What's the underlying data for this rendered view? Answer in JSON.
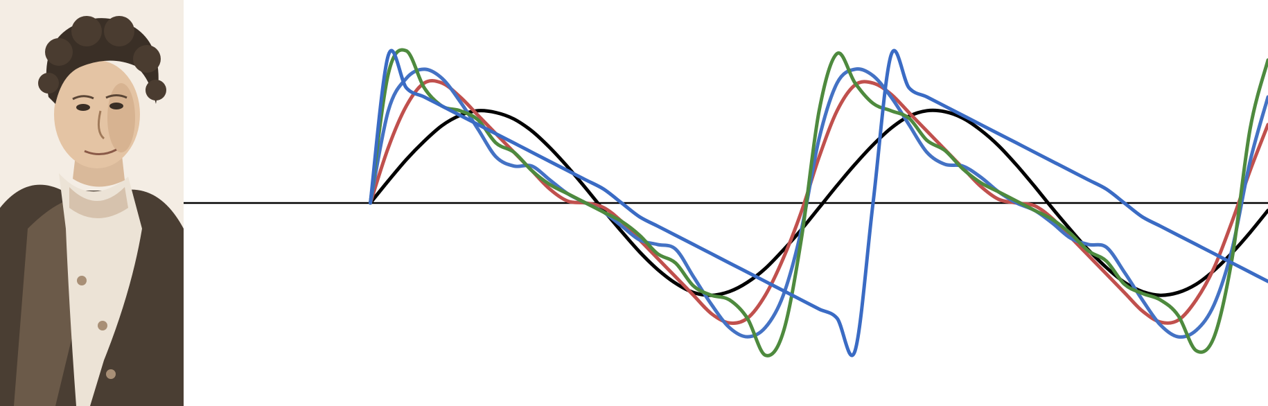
{
  "chart_data": {
    "type": "line",
    "title": "",
    "xlabel": "",
    "ylabel": "",
    "axes_visible": false,
    "grid": false,
    "legend": "none",
    "x": [
      0,
      0.25,
      0.5,
      0.75,
      1,
      1.25,
      1.5,
      1.75,
      2,
      2.25,
      2.5,
      2.75,
      3,
      3.25,
      3.5,
      3.75,
      4,
      4.25,
      4.5,
      4.75,
      5,
      5.25,
      5.5,
      5.75,
      6,
      6.25,
      6.5,
      6.75,
      7,
      7.25,
      7.5,
      7.75,
      8,
      8.25,
      8.5,
      8.75,
      9,
      9.25,
      9.5,
      9.75,
      10,
      10.25,
      10.5,
      10.75,
      11,
      11.25,
      11.5,
      11.75,
      12,
      12.25,
      12.5
    ],
    "xlim": [
      -2.6,
      12.5
    ],
    "ylim": [
      -1.9,
      1.9
    ],
    "series": [
      {
        "color": "#000000",
        "values": [
          0,
          0.24,
          0.47,
          0.67,
          0.84,
          0.95,
          1.0,
          0.98,
          0.91,
          0.78,
          0.6,
          0.39,
          0.16,
          -0.08,
          -0.31,
          -0.53,
          -0.72,
          -0.87,
          -0.97,
          -1.0,
          -0.96,
          -0.86,
          -0.71,
          -0.51,
          -0.29,
          -0.05,
          0.19,
          0.42,
          0.63,
          0.81,
          0.94,
          1.0,
          0.99,
          0.92,
          0.79,
          0.62,
          0.41,
          0.18,
          -0.06,
          -0.29,
          -0.51,
          -0.7,
          -0.86,
          -0.96,
          -1.0,
          -0.97,
          -0.88,
          -0.73,
          -0.54,
          -0.32,
          -0.08
        ]
      },
      {
        "color": "#c0504d",
        "values": [
          0,
          0.6,
          1.05,
          1.3,
          1.3,
          1.15,
          0.95,
          0.75,
          0.55,
          0.35,
          0.15,
          0.02,
          0.0,
          -0.05,
          -0.2,
          -0.4,
          -0.6,
          -0.8,
          -1.0,
          -1.2,
          -1.3,
          -1.25,
          -1.0,
          -0.6,
          -0.1,
          0.5,
          1.0,
          1.28,
          1.3,
          1.18,
          0.98,
          0.78,
          0.58,
          0.38,
          0.18,
          0.04,
          0.0,
          -0.03,
          -0.17,
          -0.37,
          -0.57,
          -0.77,
          -0.97,
          -1.17,
          -1.29,
          -1.27,
          -1.05,
          -0.7,
          -0.2,
          0.35,
          0.85
        ]
      },
      {
        "color": "#4472c4",
        "values": [
          0,
          1.0,
          1.35,
          1.45,
          1.35,
          1.1,
          0.8,
          0.5,
          0.4,
          0.4,
          0.25,
          0.1,
          0.0,
          -0.1,
          -0.25,
          -0.4,
          -0.45,
          -0.5,
          -0.8,
          -1.1,
          -1.35,
          -1.45,
          -1.35,
          -1.0,
          -0.3,
          0.7,
          1.3,
          1.45,
          1.38,
          1.15,
          0.85,
          0.55,
          0.42,
          0.4,
          0.28,
          0.12,
          0.0,
          -0.08,
          -0.22,
          -0.38,
          -0.45,
          -0.48,
          -0.75,
          -1.05,
          -1.32,
          -1.45,
          -1.38,
          -1.1,
          -0.5,
          0.45,
          1.15
        ]
      },
      {
        "color": "#4e8a3e",
        "values": [
          0,
          1.4,
          1.65,
          1.25,
          1.05,
          1.0,
          0.9,
          0.65,
          0.55,
          0.35,
          0.2,
          0.1,
          0.0,
          -0.1,
          -0.2,
          -0.35,
          -0.55,
          -0.65,
          -0.9,
          -1.0,
          -1.05,
          -1.25,
          -1.65,
          -1.4,
          -0.4,
          1.0,
          1.62,
          1.3,
          1.08,
          1.0,
          0.92,
          0.68,
          0.57,
          0.37,
          0.22,
          0.12,
          0.02,
          -0.08,
          -0.18,
          -0.33,
          -0.52,
          -0.63,
          -0.88,
          -0.98,
          -1.05,
          -1.22,
          -1.6,
          -1.45,
          -0.6,
          0.8,
          1.55
        ]
      },
      {
        "color": "#3a6bc4",
        "values": [
          0,
          1.6,
          1.25,
          1.15,
          1.05,
          0.95,
          0.85,
          0.75,
          0.65,
          0.55,
          0.45,
          0.35,
          0.25,
          0.15,
          0.0,
          -0.15,
          -0.25,
          -0.35,
          -0.45,
          -0.55,
          -0.65,
          -0.75,
          -0.85,
          -0.95,
          -1.05,
          -1.15,
          -1.25,
          -1.6,
          0.0,
          1.6,
          1.25,
          1.15,
          1.05,
          0.95,
          0.85,
          0.75,
          0.65,
          0.55,
          0.45,
          0.35,
          0.25,
          0.15,
          0.0,
          -0.15,
          -0.25,
          -0.35,
          -0.45,
          -0.55,
          -0.65,
          -0.75,
          -0.85
        ]
      }
    ],
    "reference_lines": [
      {
        "orientation": "horizontal",
        "y": 0,
        "color": "#000000"
      }
    ]
  },
  "portrait": {
    "background": "#ffffff",
    "tones": [
      "#3a2f26",
      "#6b5a49",
      "#a88f76",
      "#d6c2ad",
      "#efe6dc"
    ]
  }
}
